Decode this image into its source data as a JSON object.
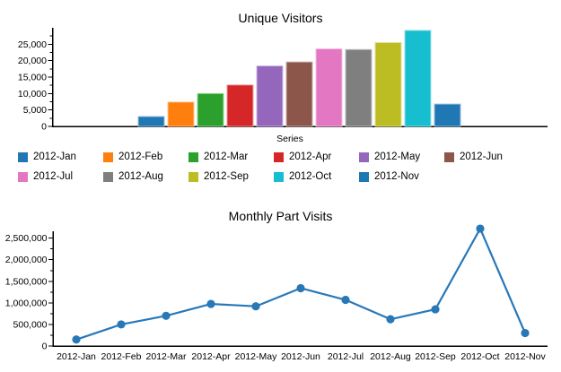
{
  "page": {
    "background": "#ffffff",
    "axis_color": "#000000"
  },
  "chart_data": [
    {
      "type": "bar",
      "title": "Unique Visitors",
      "xlabel": "Series",
      "ylabel": "",
      "categories": [
        "2012-Jan",
        "2012-Feb",
        "2012-Mar",
        "2012-Apr",
        "2012-May",
        "2012-Jun",
        "2012-Jul",
        "2012-Aug",
        "2012-Sep",
        "2012-Oct",
        "2012-Nov"
      ],
      "values": [
        3000,
        7400,
        10000,
        12600,
        18400,
        19600,
        23600,
        23400,
        25500,
        29200,
        6800
      ],
      "colors": [
        "#1f77b4",
        "#ff7f0e",
        "#2ca02c",
        "#d62728",
        "#9467bd",
        "#8c564b",
        "#e377c2",
        "#7f7f7f",
        "#bcbd22",
        "#17becf",
        "#1f77b4"
      ],
      "ylim": [
        0,
        30000
      ],
      "yticks": [
        0,
        5000,
        10000,
        15000,
        20000,
        25000
      ],
      "ytick_labels": [
        "0",
        "5,000",
        "10,000",
        "15,000",
        "20,000",
        "25,000"
      ],
      "grid": false,
      "legend_position": "bottom",
      "legend_rows": [
        [
          "2012-Jan",
          "2012-Feb",
          "2012-Mar",
          "2012-Apr",
          "2012-May",
          "2012-Jun"
        ],
        [
          "2012-Jul",
          "2012-Aug",
          "2012-Sep",
          "2012-Oct",
          "2012-Nov"
        ]
      ]
    },
    {
      "type": "line",
      "title": "Monthly Part Visits",
      "xlabel": "",
      "ylabel": "",
      "categories": [
        "2012-Jan",
        "2012-Feb",
        "2012-Mar",
        "2012-Apr",
        "2012-May",
        "2012-Jun",
        "2012-Jul",
        "2012-Aug",
        "2012-Sep",
        "2012-Oct",
        "2012-Nov"
      ],
      "values": [
        150000,
        500000,
        700000,
        975000,
        920000,
        1340000,
        1070000,
        620000,
        850000,
        2720000,
        300000
      ],
      "color": "#2878b8",
      "ylim": [
        0,
        2660000
      ],
      "yticks": [
        0,
        500000,
        1000000,
        1500000,
        2000000,
        2500000
      ],
      "ytick_labels": [
        "0",
        "500,000",
        "1,000,000",
        "1,500,000",
        "2,000,000",
        "2,500,000"
      ],
      "grid": false,
      "legend_position": "none"
    }
  ]
}
